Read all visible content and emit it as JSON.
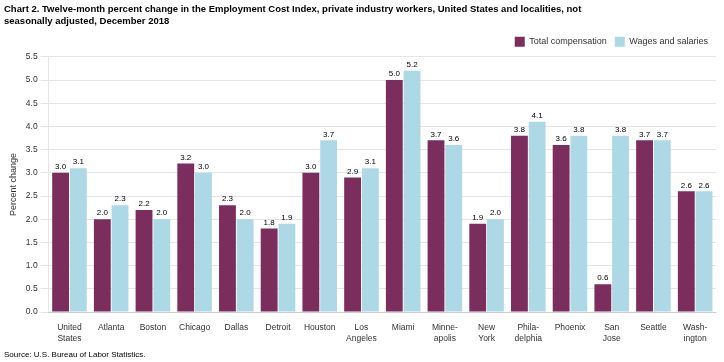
{
  "chart_data": {
    "type": "bar",
    "title": [
      "Chart 2. Twelve-month percent change in the Employment Cost Index, private industry workers, United States and localities, not",
      "seasonally adjusted, December 2018"
    ],
    "y_label": "Percent change",
    "annotations": [
      "Source: U.S. Bureau of Labor Statistics."
    ],
    "categories": [
      "United\nStates",
      "Atlanta",
      "Boston",
      "Chicago",
      "Dallas",
      "Detroit",
      "Houston",
      "Los\nAngeles",
      "Miami",
      "Minne-\napolis",
      "New\nYork",
      "Phila-\ndelphia",
      "Phoenix",
      "San\nJose",
      "Seattle",
      "Wash-\nington"
    ],
    "series": [
      {
        "name": "Total compensation",
        "color": "#7B2D5E",
        "values": [
          3.0,
          2.0,
          2.2,
          3.2,
          2.3,
          1.8,
          3.0,
          2.9,
          5.0,
          3.7,
          1.9,
          3.8,
          3.6,
          0.6,
          3.7,
          2.6
        ],
        "value_labels": [
          "3.0",
          "2.0",
          "2.2",
          "3.2",
          "2.3",
          "1.8",
          "3.0",
          "2.9",
          "5.0",
          "3.7",
          "1.9",
          "3.8",
          "3.6",
          "0.6",
          "3.7",
          "2.6"
        ]
      },
      {
        "name": "Wages and salaries",
        "color": "#ADD8E6",
        "values": [
          3.1,
          2.3,
          2.0,
          3.0,
          2.0,
          1.9,
          3.7,
          3.1,
          5.2,
          3.6,
          2.0,
          4.1,
          3.8,
          3.8,
          3.7,
          2.6
        ],
        "value_labels": [
          "3.1",
          "2.3",
          "2.0",
          "3.0",
          "2.0",
          "1.9",
          "3.7",
          "3.1",
          "5.2",
          "3.6",
          "2.0",
          "4.1",
          "3.8",
          "3.8",
          "3.7",
          "2.6"
        ]
      }
    ],
    "ylim": [
      0,
      5.5
    ],
    "yticks": [
      {
        "value": 0,
        "label": "0.0"
      },
      0.5,
      {
        "value": 1,
        "label": "1.0"
      },
      1.5,
      {
        "value": 2,
        "label": "2.0"
      },
      2.5,
      {
        "value": 3,
        "label": "3.0"
      },
      3.5,
      {
        "value": 4,
        "label": "4.0"
      },
      4.5,
      {
        "value": 5,
        "label": "5.0"
      },
      5.5
    ],
    "grid": true,
    "legend": "upper right",
    "data_labels": true
  }
}
